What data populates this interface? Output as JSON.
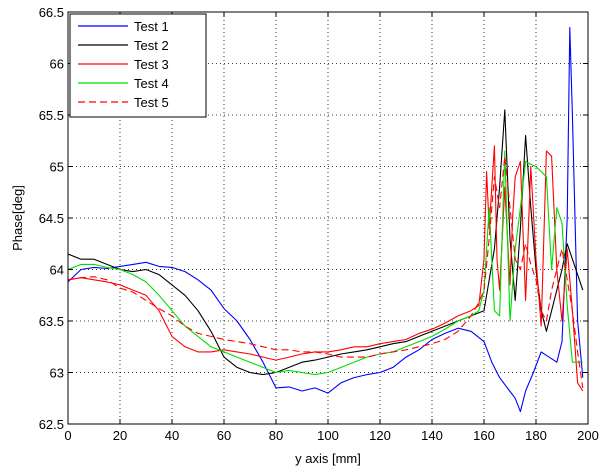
{
  "chart_data": {
    "type": "line",
    "title": "",
    "xlabel": "y axis [mm]",
    "ylabel": "Phase[deg]",
    "xlim": [
      0,
      200
    ],
    "ylim": [
      62.5,
      66.5
    ],
    "xticks": [
      0,
      20,
      40,
      60,
      80,
      100,
      120,
      140,
      160,
      180,
      200
    ],
    "yticks": [
      62.5,
      63,
      63.5,
      64,
      64.5,
      65,
      65.5,
      66,
      66.5
    ],
    "xtick_labels": [
      "0",
      "20",
      "40",
      "60",
      "80",
      "100",
      "120",
      "140",
      "160",
      "180",
      "200"
    ],
    "ytick_labels": [
      "62.5",
      "63",
      "63.5",
      "64",
      "64.5",
      "65",
      "65.5",
      "66",
      "66.5"
    ],
    "grid": true,
    "legend_position": "top-left",
    "series": [
      {
        "name": "Test 1",
        "color": "#0000ff",
        "dash": "solid",
        "x": [
          0,
          5,
          10,
          15,
          20,
          25,
          30,
          35,
          40,
          45,
          50,
          55,
          60,
          65,
          70,
          75,
          80,
          85,
          90,
          95,
          100,
          105,
          110,
          115,
          120,
          125,
          130,
          135,
          140,
          145,
          150,
          155,
          160,
          163,
          166,
          169,
          172,
          174,
          176,
          179,
          182,
          185,
          188,
          190,
          192,
          193,
          194,
          196,
          198
        ],
        "y": [
          63.88,
          64.0,
          64.02,
          64.01,
          64.03,
          64.05,
          64.07,
          64.03,
          64.02,
          63.98,
          63.9,
          63.8,
          63.62,
          63.5,
          63.32,
          63.1,
          62.85,
          62.86,
          62.82,
          62.85,
          62.8,
          62.9,
          62.95,
          62.98,
          63.0,
          63.05,
          63.15,
          63.22,
          63.32,
          63.38,
          63.43,
          63.4,
          63.3,
          63.1,
          62.95,
          62.85,
          62.75,
          62.62,
          62.82,
          63.0,
          63.2,
          63.15,
          63.1,
          63.3,
          64.5,
          66.35,
          65.5,
          63.5,
          62.95
        ]
      },
      {
        "name": "Test 2",
        "color": "#000000",
        "dash": "solid",
        "x": [
          0,
          5,
          10,
          15,
          20,
          25,
          30,
          35,
          40,
          45,
          50,
          55,
          60,
          65,
          70,
          75,
          80,
          85,
          90,
          95,
          100,
          105,
          110,
          115,
          120,
          125,
          130,
          135,
          140,
          145,
          150,
          155,
          160,
          162,
          164,
          166,
          168,
          170,
          172,
          174,
          176,
          178,
          180,
          182,
          184,
          186,
          188,
          190,
          192,
          194,
          196,
          198
        ],
        "y": [
          64.15,
          64.1,
          64.1,
          64.05,
          64.0,
          63.98,
          64.0,
          63.95,
          63.85,
          63.75,
          63.6,
          63.4,
          63.15,
          63.05,
          63.0,
          62.98,
          63.0,
          63.05,
          63.1,
          63.12,
          63.15,
          63.18,
          63.2,
          63.22,
          63.25,
          63.28,
          63.3,
          63.35,
          63.4,
          63.45,
          63.5,
          63.55,
          63.6,
          63.9,
          64.2,
          64.8,
          65.55,
          64.3,
          63.7,
          64.4,
          65.3,
          64.6,
          64.0,
          63.6,
          63.4,
          63.6,
          63.8,
          64.0,
          64.25,
          64.1,
          63.95,
          63.8
        ]
      },
      {
        "name": "Test 3",
        "color": "#ff0000",
        "dash": "solid",
        "x": [
          0,
          5,
          10,
          15,
          20,
          25,
          30,
          35,
          40,
          45,
          50,
          55,
          60,
          65,
          70,
          75,
          80,
          85,
          90,
          95,
          100,
          105,
          110,
          115,
          120,
          125,
          130,
          135,
          140,
          145,
          150,
          155,
          158,
          160,
          161,
          162,
          164,
          165,
          166,
          168,
          170,
          171,
          172,
          174,
          176,
          178,
          180,
          182,
          184,
          186,
          188,
          190,
          192,
          194,
          196,
          198
        ],
        "y": [
          63.9,
          63.92,
          63.9,
          63.88,
          63.85,
          63.8,
          63.75,
          63.6,
          63.35,
          63.25,
          63.2,
          63.2,
          63.22,
          63.2,
          63.18,
          63.15,
          63.12,
          63.15,
          63.18,
          63.2,
          63.2,
          63.22,
          63.25,
          63.25,
          63.28,
          63.3,
          63.32,
          63.38,
          63.42,
          63.48,
          63.55,
          63.6,
          63.65,
          64.1,
          64.95,
          64.4,
          65.2,
          64.1,
          63.8,
          64.8,
          63.85,
          64.5,
          64.9,
          65.05,
          63.7,
          65.0,
          64.1,
          63.45,
          65.15,
          65.1,
          64.0,
          63.5,
          64.2,
          63.6,
          62.9,
          62.82
        ]
      },
      {
        "name": "Test 4",
        "color": "#00dd00",
        "dash": "solid",
        "x": [
          0,
          5,
          10,
          15,
          20,
          25,
          30,
          35,
          40,
          45,
          50,
          55,
          60,
          65,
          70,
          75,
          80,
          85,
          90,
          95,
          100,
          105,
          110,
          115,
          120,
          125,
          130,
          135,
          140,
          145,
          150,
          155,
          158,
          160,
          162,
          164,
          166,
          168,
          170,
          172,
          174,
          176,
          178,
          180,
          182,
          184,
          186,
          188,
          190,
          192,
          194,
          196,
          198
        ],
        "y": [
          64.0,
          64.05,
          64.05,
          64.02,
          64.0,
          63.95,
          63.88,
          63.75,
          63.6,
          63.45,
          63.35,
          63.25,
          63.2,
          63.15,
          63.1,
          63.05,
          63.0,
          63.02,
          63.0,
          62.98,
          63.0,
          63.05,
          63.1,
          63.15,
          63.18,
          63.2,
          63.25,
          63.3,
          63.35,
          63.42,
          63.5,
          63.55,
          63.6,
          63.8,
          64.6,
          63.6,
          63.55,
          65.15,
          63.5,
          64.2,
          64.6,
          65.05,
          65.02,
          65.0,
          64.95,
          64.9,
          64.0,
          64.6,
          64.45,
          63.65,
          63.1,
          63.1,
          63.1
        ]
      },
      {
        "name": "Test 5",
        "color": "#ff0000",
        "dash": "dashed",
        "x": [
          0,
          5,
          10,
          15,
          20,
          25,
          30,
          35,
          40,
          45,
          50,
          55,
          60,
          65,
          70,
          75,
          80,
          85,
          90,
          95,
          100,
          105,
          110,
          115,
          120,
          125,
          130,
          135,
          140,
          145,
          150,
          155,
          158,
          160,
          162,
          164,
          166,
          168,
          170,
          172,
          174,
          176,
          178,
          180,
          182,
          184,
          186,
          188,
          190,
          192,
          194,
          196,
          198
        ],
        "y": [
          63.9,
          63.92,
          63.93,
          63.9,
          63.82,
          63.78,
          63.7,
          63.62,
          63.55,
          63.45,
          63.38,
          63.35,
          63.32,
          63.3,
          63.28,
          63.25,
          63.22,
          63.22,
          63.2,
          63.2,
          63.18,
          63.15,
          63.15,
          63.15,
          63.18,
          63.2,
          63.22,
          63.25,
          63.28,
          63.32,
          63.4,
          63.55,
          63.68,
          63.8,
          64.3,
          64.9,
          64.6,
          65.1,
          64.6,
          64.1,
          64.0,
          64.25,
          64.05,
          63.9,
          63.6,
          63.5,
          63.8,
          64.0,
          64.2,
          63.9,
          63.6,
          63.2,
          62.85
        ]
      }
    ]
  }
}
